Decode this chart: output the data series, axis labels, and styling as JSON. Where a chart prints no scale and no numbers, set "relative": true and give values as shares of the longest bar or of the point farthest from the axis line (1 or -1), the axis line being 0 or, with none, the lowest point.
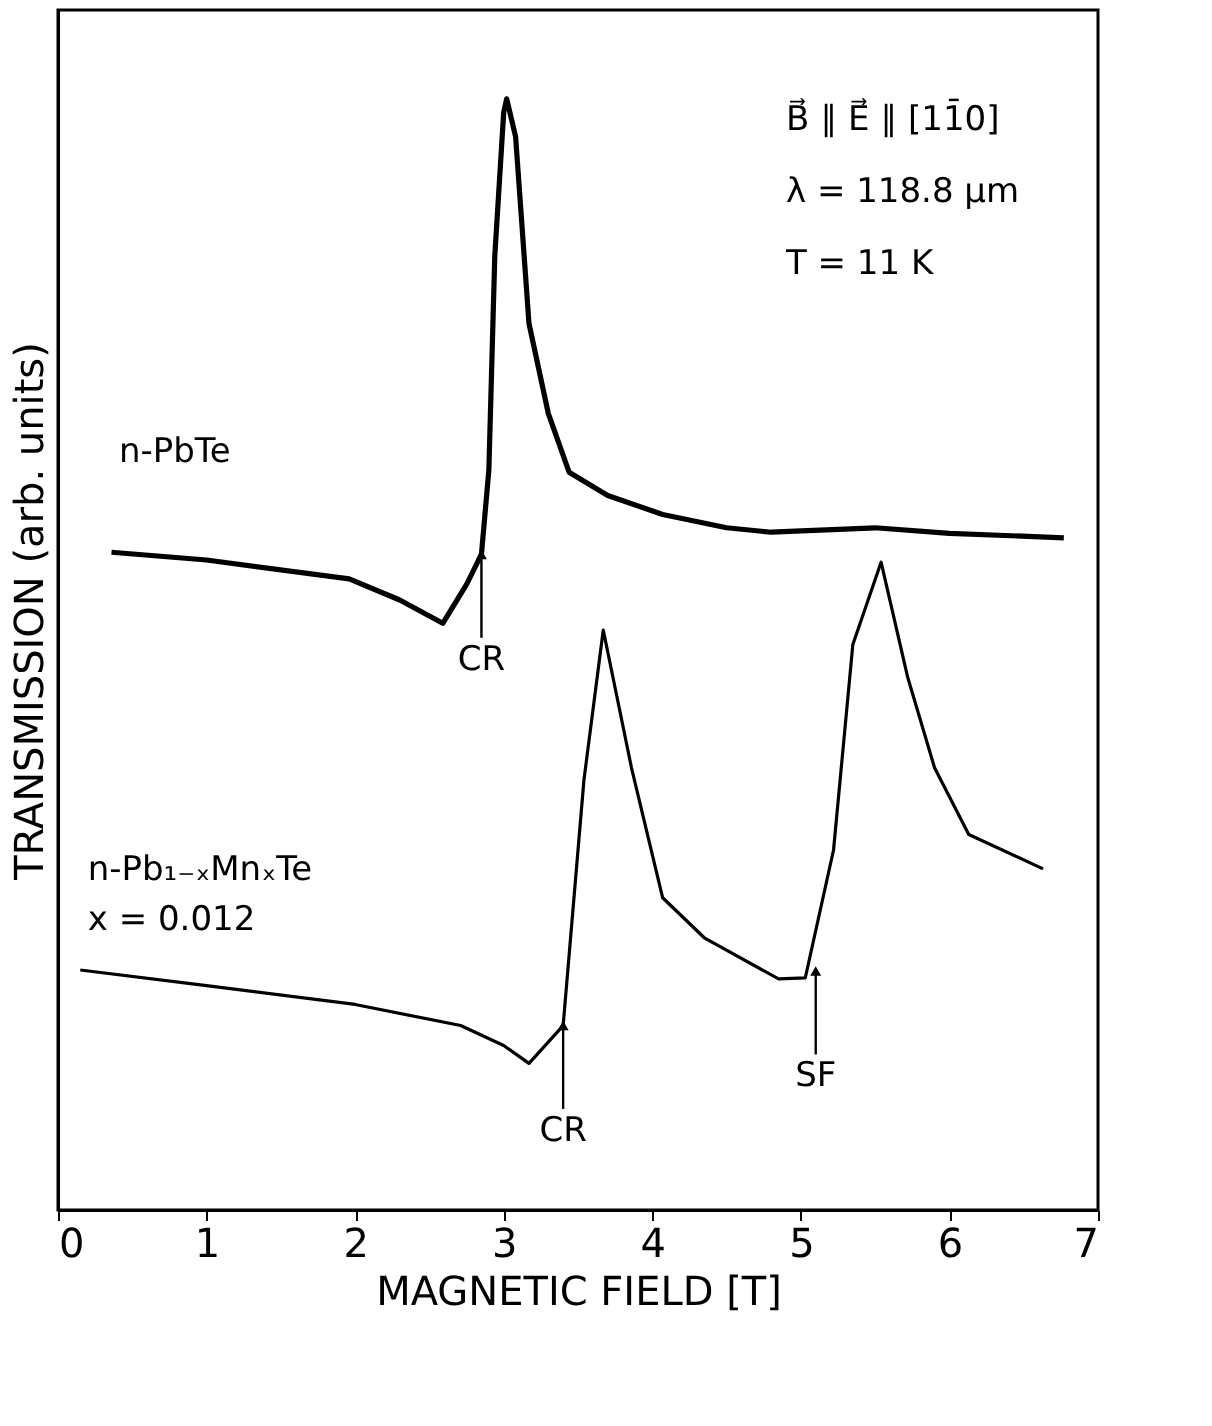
{
  "chart_data": {
    "type": "line",
    "relative": true,
    "xlabel": "MAGNETIC FIELD [T]",
    "ylabel": "TRANSMISSION (arb. units)",
    "xlim": [
      0,
      7
    ],
    "xticks": [
      0,
      1,
      2,
      3,
      4,
      5,
      6,
      7
    ],
    "grid": false,
    "marker": "none",
    "line_style": "solid",
    "series": [
      {
        "name": "n-PbTe",
        "color": "#000000",
        "x": [
          0.36,
          1.0,
          1.96,
          2.3,
          2.59,
          2.75,
          2.85,
          2.9,
          2.94,
          3.0,
          3.02,
          3.08,
          3.17,
          3.3,
          3.44,
          3.7,
          4.07,
          4.5,
          4.8,
          5.5,
          6.0,
          6.77
        ],
        "values": [
          0.592,
          0.585,
          0.568,
          0.549,
          0.528,
          0.563,
          0.59,
          0.666,
          0.859,
          0.988,
          1.0,
          0.966,
          0.798,
          0.717,
          0.664,
          0.643,
          0.626,
          0.614,
          0.61,
          0.614,
          0.609,
          0.605
        ]
      },
      {
        "name": "n-Pb₁₋ₓMnₓTe",
        "color": "#000000",
        "x": [
          0.15,
          1.0,
          2.0,
          2.71,
          3.0,
          3.17,
          3.4,
          3.54,
          3.67,
          3.86,
          4.07,
          4.35,
          4.85,
          5.03,
          5.22,
          5.35,
          5.54,
          5.72,
          5.9,
          6.13,
          6.63
        ],
        "values": [
          0.216,
          0.202,
          0.185,
          0.166,
          0.148,
          0.132,
          0.166,
          0.387,
          0.522,
          0.398,
          0.281,
          0.245,
          0.208,
          0.209,
          0.324,
          0.509,
          0.583,
          0.479,
          0.398,
          0.338,
          0.307
        ]
      }
    ],
    "annotations": [
      "B⃗ ∥ E⃗ ∥ [11̄0]",
      "λ = 118.8 µm",
      "T = 11 K",
      "x = 0.012",
      {
        "text": "CR",
        "x": 2.85,
        "y": 0.59
      },
      {
        "text": "CR",
        "x": 3.4,
        "y": 0.166
      },
      {
        "text": "SF",
        "x": 5.1,
        "y": 0.215
      }
    ]
  }
}
